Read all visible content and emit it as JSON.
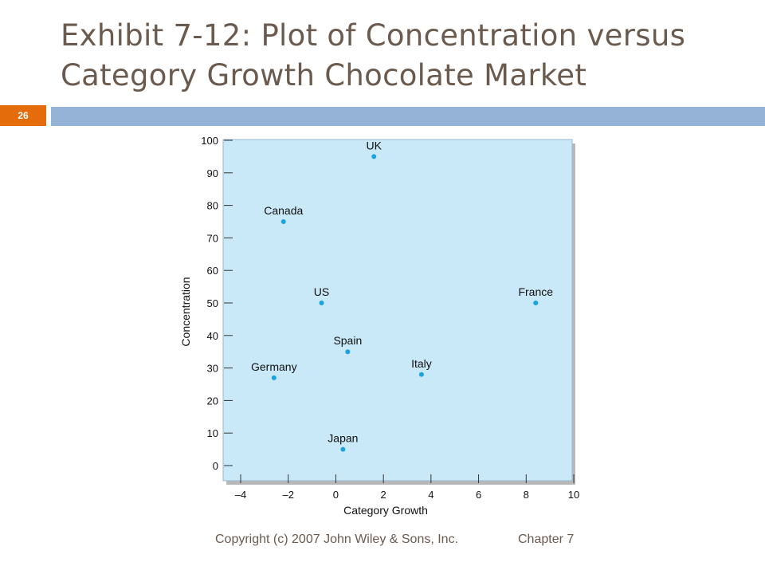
{
  "slide": {
    "title": "Exhibit 7-12: Plot of Concentration versus Category Growth Chocolate Market",
    "page_number": "26",
    "footer_copyright": "Copyright (c) 2007 John Wiley & Sons, Inc.",
    "footer_chapter": "Chapter 7"
  },
  "colors": {
    "accent_orange": "#e46c0a",
    "title_brown": "#6b5a4e",
    "bar_blue": "#95b3d7",
    "plot_background": "#c9e8f8",
    "point": "#1aa3de"
  },
  "chart_data": {
    "type": "scatter",
    "title": "",
    "xlabel": "Category Growth",
    "ylabel": "Concentration",
    "xlim": [
      -4,
      10
    ],
    "ylim": [
      0,
      100
    ],
    "xticks": [
      -4,
      -2,
      0,
      2,
      4,
      6,
      8,
      10
    ],
    "xtick_labels": [
      "–4",
      "–2",
      "0",
      "2",
      "4",
      "6",
      "8",
      "10"
    ],
    "yticks": [
      0,
      10,
      20,
      30,
      40,
      50,
      60,
      70,
      80,
      90,
      100
    ],
    "grid": false,
    "points": [
      {
        "label": "UK",
        "x": 1.6,
        "y": 95
      },
      {
        "label": "Canada",
        "x": -2.2,
        "y": 75
      },
      {
        "label": "France",
        "x": 8.4,
        "y": 50
      },
      {
        "label": "US",
        "x": -0.6,
        "y": 50
      },
      {
        "label": "Spain",
        "x": 0.5,
        "y": 35
      },
      {
        "label": "Germany",
        "x": -2.6,
        "y": 27
      },
      {
        "label": "Italy",
        "x": 3.6,
        "y": 28
      },
      {
        "label": "Japan",
        "x": 0.3,
        "y": 5
      }
    ]
  }
}
